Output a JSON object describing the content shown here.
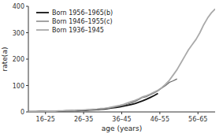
{
  "chart_data": {
    "type": "line",
    "xlabel": "age (years)",
    "ylabel": "rate(a)",
    "xlim": [
      16,
      65
    ],
    "ylim": [
      0,
      400
    ],
    "xticks": [
      {
        "value": 20.5,
        "label": "16–25"
      },
      {
        "value": 30.5,
        "label": "26–35"
      },
      {
        "value": 40.5,
        "label": "36–45"
      },
      {
        "value": 50.5,
        "label": "46–55"
      },
      {
        "value": 60.5,
        "label": "56–65"
      }
    ],
    "yticks": [
      0,
      100,
      200,
      300,
      400
    ],
    "grid": false,
    "legend": "upper left",
    "series": [
      {
        "name": "Born 1956–1965(b)",
        "color": "#111111",
        "x": [
          16,
          17,
          18,
          19,
          20,
          21,
          22,
          23,
          24,
          25,
          26,
          27,
          28,
          29,
          30,
          31,
          32,
          33,
          34,
          35,
          36,
          37,
          38,
          39,
          40,
          41,
          42,
          43,
          44,
          45,
          46,
          47,
          48,
          49,
          50
        ],
        "values": [
          1,
          1,
          1,
          2,
          2,
          2,
          2,
          3,
          3,
          3,
          4,
          4,
          5,
          5,
          6,
          6,
          7,
          8,
          9,
          10,
          11,
          13,
          15,
          17,
          19,
          22,
          25,
          28,
          32,
          37,
          42,
          48,
          55,
          62,
          70
        ]
      },
      {
        "name": "Born 1946–1955(c)",
        "color": "#666666",
        "x": [
          16,
          17,
          18,
          19,
          20,
          21,
          22,
          23,
          24,
          25,
          26,
          27,
          28,
          29,
          30,
          31,
          32,
          33,
          34,
          35,
          36,
          37,
          38,
          39,
          40,
          41,
          42,
          43,
          44,
          45,
          46,
          47,
          48,
          49,
          50,
          51,
          52,
          53,
          54,
          55
        ],
        "values": [
          1,
          1,
          1,
          2,
          2,
          2,
          3,
          3,
          3,
          4,
          4,
          5,
          5,
          6,
          7,
          7,
          8,
          9,
          10,
          11,
          13,
          14,
          16,
          19,
          22,
          25,
          29,
          34,
          40,
          47,
          55,
          58,
          65,
          72,
          80,
          90,
          100,
          112,
          118,
          125
        ]
      },
      {
        "name": "Born 1936–1945",
        "color": "#aaaaaa",
        "x": [
          16,
          17,
          18,
          19,
          20,
          21,
          22,
          23,
          24,
          25,
          26,
          27,
          28,
          29,
          30,
          31,
          32,
          33,
          34,
          35,
          36,
          37,
          38,
          39,
          40,
          41,
          42,
          43,
          44,
          45,
          46,
          47,
          48,
          49,
          50,
          51,
          52,
          53,
          54,
          55,
          56,
          57,
          58,
          59,
          60,
          61,
          62,
          63,
          64,
          65
        ],
        "values": [
          1,
          1,
          2,
          2,
          2,
          3,
          3,
          3,
          4,
          4,
          5,
          5,
          6,
          7,
          7,
          8,
          9,
          10,
          11,
          13,
          14,
          16,
          19,
          22,
          25,
          29,
          34,
          39,
          44,
          50,
          57,
          62,
          68,
          75,
          82,
          92,
          105,
          120,
          140,
          160,
          185,
          210,
          235,
          255,
          275,
          300,
          330,
          355,
          375,
          390
        ]
      }
    ]
  }
}
